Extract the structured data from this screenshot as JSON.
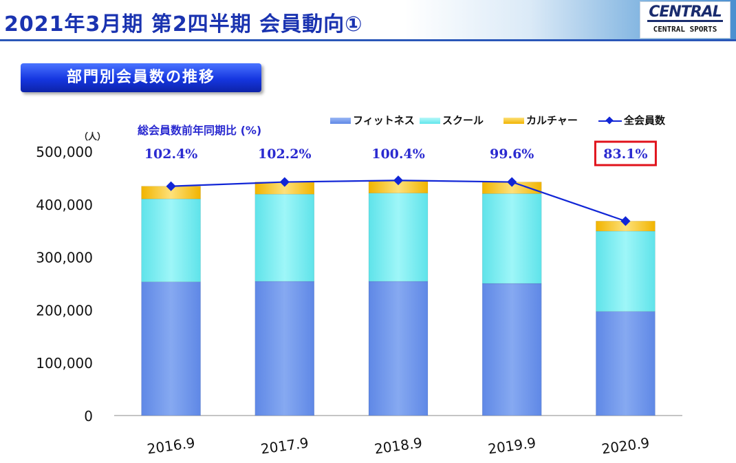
{
  "page": {
    "title": "2021年3月期 第2四半期 会員動向①",
    "logo_mark": "CENTRAL",
    "logo_text": "CENTRAL SPORTS",
    "section_label": "部門別会員数の推移"
  },
  "colors": {
    "fitness": "#6f98ee",
    "school": "#7ff1f4",
    "culture": "#f8c91c",
    "total_line": "#1126d6",
    "yoy_text": "#2a2ad0",
    "highlight_box": "#e0121b"
  },
  "chart_data": {
    "type": "bar",
    "stacked": true,
    "unit_label": "（人）",
    "yoy_title": "総会員数前年同期比 (%)",
    "categories": [
      "2016.9",
      "2017.9",
      "2018.9",
      "2019.9",
      "2020.9"
    ],
    "series": [
      {
        "name": "フィットネス",
        "values": [
          253000,
          254000,
          254000,
          250000,
          197000
        ]
      },
      {
        "name": "スクール",
        "values": [
          157000,
          165000,
          167000,
          170000,
          152000
        ]
      },
      {
        "name": "カルチャー",
        "values": [
          24000,
          23000,
          24000,
          22000,
          19000
        ]
      }
    ],
    "line_series": {
      "name": "全会員数",
      "values": [
        434000,
        442000,
        445000,
        442000,
        368000
      ]
    },
    "yoy_labels": [
      "102.4%",
      "102.2%",
      "100.4%",
      "99.6%",
      "83.1%"
    ],
    "highlight_index": 4,
    "y_ticks": [
      "0",
      "100,000",
      "200,000",
      "300,000",
      "400,000",
      "500,000"
    ],
    "ylim": [
      0,
      500000
    ]
  }
}
